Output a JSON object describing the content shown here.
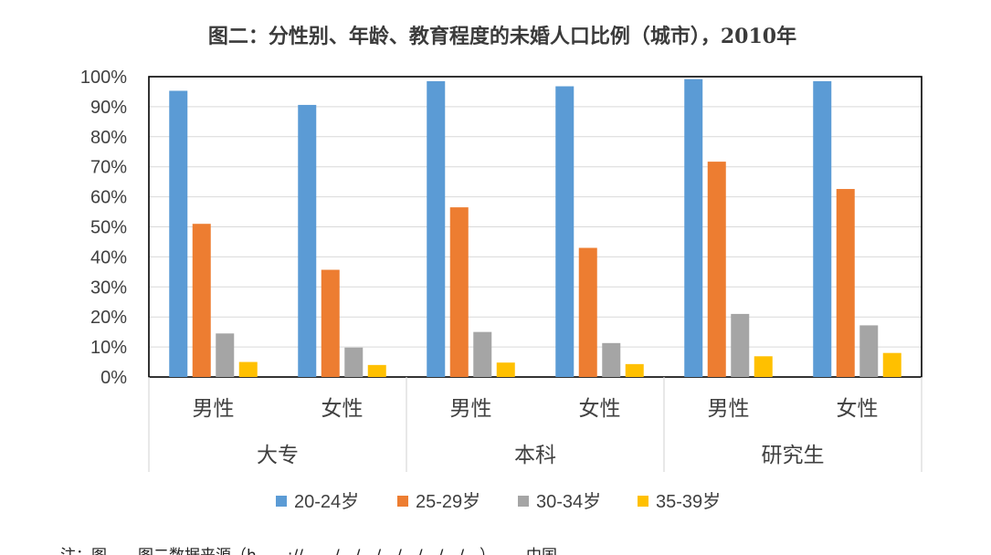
{
  "chart_data": {
    "type": "bar",
    "title": "图二：分性别、年龄、教育程度的未婚人口比例（城市），2010年",
    "ylim": [
      0,
      100
    ],
    "y_ticks": [
      "0%",
      "10%",
      "20%",
      "30%",
      "40%",
      "50%",
      "60%",
      "70%",
      "80%",
      "90%",
      "100%"
    ],
    "grid": true,
    "legend_position": "bottom",
    "groups": [
      {
        "label": "大专",
        "sub": [
          "男性",
          "女性"
        ]
      },
      {
        "label": "本科",
        "sub": [
          "男性",
          "女性"
        ]
      },
      {
        "label": "研究生",
        "sub": [
          "男性",
          "女性"
        ]
      }
    ],
    "series": [
      {
        "name": "20-24岁",
        "color": "#5b9bd5",
        "values": [
          95.3,
          90.6,
          98.5,
          96.8,
          99.2,
          98.5
        ]
      },
      {
        "name": "25-29岁",
        "color": "#ed7d31",
        "values": [
          51.0,
          35.7,
          56.5,
          43.0,
          71.7,
          62.6
        ]
      },
      {
        "name": "30-34岁",
        "color": "#a5a5a5",
        "values": [
          14.5,
          9.8,
          15.0,
          11.3,
          21.0,
          17.2
        ]
      },
      {
        "name": "35-39岁",
        "color": "#ffc000",
        "values": [
          5.0,
          4.0,
          4.8,
          4.3,
          6.9,
          8.0
        ]
      }
    ]
  },
  "note": "注：图……图二数据来源（h……://……/…/…/…/…/…/…/…）……中国"
}
